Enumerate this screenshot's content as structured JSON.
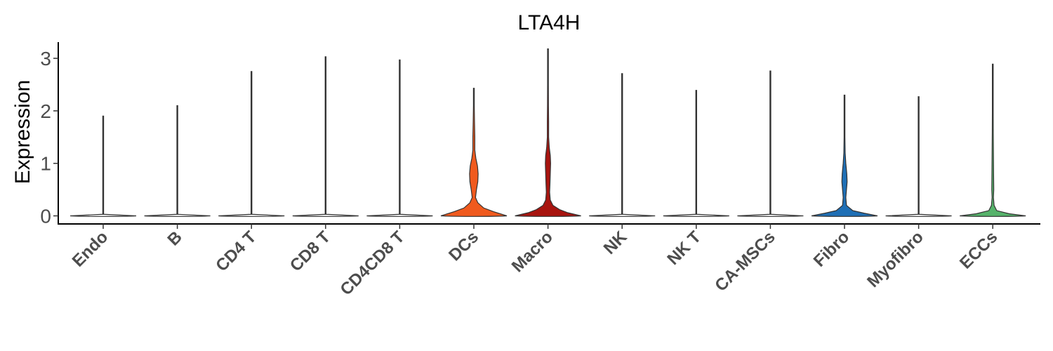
{
  "chart_data": {
    "type": "violin",
    "title": "LTA4H",
    "xlabel": "",
    "ylabel": "Expression",
    "ylim": [
      -0.15,
      3.3
    ],
    "yticks": [
      "0",
      "1",
      "2",
      "3"
    ],
    "grid": false,
    "legend": "none",
    "categories": [
      "Endo",
      "B",
      "CD4 T",
      "CD8 T",
      "CD4CD8 T",
      "DCs",
      "Macro",
      "NK",
      "NK T",
      "CA-MSCs",
      "Fibro",
      "Myofibro",
      "ECCs"
    ],
    "max_values": [
      1.9,
      2.1,
      2.75,
      3.03,
      2.97,
      2.43,
      3.18,
      2.71,
      2.39,
      2.76,
      2.3,
      2.27,
      2.89
    ],
    "colors": [
      "#ffffff",
      "#ffffff",
      "#ffffff",
      "#ffffff",
      "#ffffff",
      "#f05a1e",
      "#a8140f",
      "#ffffff",
      "#ffffff",
      "#ffffff",
      "#1f6fb5",
      "#ffffff",
      "#56b36b"
    ],
    "density_profiles": [
      [
        [
          0,
          1.0
        ],
        [
          0.03,
          0.0
        ],
        [
          1.9,
          0.0
        ]
      ],
      [
        [
          0,
          1.0
        ],
        [
          0.03,
          0.0
        ],
        [
          2.1,
          0.0
        ]
      ],
      [
        [
          0,
          1.0
        ],
        [
          0.03,
          0.0
        ],
        [
          2.75,
          0.0
        ]
      ],
      [
        [
          0,
          1.0
        ],
        [
          0.03,
          0.0
        ],
        [
          3.03,
          0.0
        ]
      ],
      [
        [
          0,
          1.0
        ],
        [
          0.03,
          0.0
        ],
        [
          2.97,
          0.0
        ]
      ],
      [
        [
          0,
          1.0
        ],
        [
          0.08,
          0.6
        ],
        [
          0.15,
          0.3
        ],
        [
          0.25,
          0.12
        ],
        [
          0.35,
          0.05
        ],
        [
          0.5,
          0.08
        ],
        [
          0.65,
          0.12
        ],
        [
          0.8,
          0.13
        ],
        [
          0.95,
          0.11
        ],
        [
          1.1,
          0.06
        ],
        [
          1.25,
          0.03
        ],
        [
          1.5,
          0.03
        ],
        [
          1.8,
          0.02
        ],
        [
          2.1,
          0.01
        ],
        [
          2.43,
          0.0
        ]
      ],
      [
        [
          0,
          1.0
        ],
        [
          0.06,
          0.6
        ],
        [
          0.12,
          0.35
        ],
        [
          0.2,
          0.15
        ],
        [
          0.3,
          0.07
        ],
        [
          0.45,
          0.05
        ],
        [
          0.6,
          0.06
        ],
        [
          0.8,
          0.07
        ],
        [
          1.0,
          0.08
        ],
        [
          1.15,
          0.07
        ],
        [
          1.3,
          0.04
        ],
        [
          1.5,
          0.02
        ],
        [
          1.8,
          0.02
        ],
        [
          2.1,
          0.015
        ],
        [
          2.5,
          0.01
        ],
        [
          3.18,
          0.0
        ]
      ],
      [
        [
          0,
          1.0
        ],
        [
          0.03,
          0.0
        ],
        [
          2.71,
          0.0
        ]
      ],
      [
        [
          0,
          1.0
        ],
        [
          0.03,
          0.0
        ],
        [
          2.39,
          0.0
        ]
      ],
      [
        [
          0,
          1.0
        ],
        [
          0.03,
          0.0
        ],
        [
          2.76,
          0.0
        ]
      ],
      [
        [
          0,
          1.0
        ],
        [
          0.05,
          0.6
        ],
        [
          0.1,
          0.25
        ],
        [
          0.2,
          0.06
        ],
        [
          0.35,
          0.04
        ],
        [
          0.5,
          0.06
        ],
        [
          0.65,
          0.08
        ],
        [
          0.8,
          0.07
        ],
        [
          1.0,
          0.04
        ],
        [
          1.2,
          0.02
        ],
        [
          1.5,
          0.01
        ],
        [
          2.3,
          0.0
        ]
      ],
      [
        [
          0,
          1.0
        ],
        [
          0.03,
          0.0
        ],
        [
          2.27,
          0.0
        ]
      ],
      [
        [
          0,
          1.0
        ],
        [
          0.04,
          0.5
        ],
        [
          0.1,
          0.12
        ],
        [
          0.2,
          0.04
        ],
        [
          0.35,
          0.02
        ],
        [
          0.5,
          0.03
        ],
        [
          0.8,
          0.025
        ],
        [
          1.2,
          0.02
        ],
        [
          1.6,
          0.015
        ],
        [
          2.0,
          0.01
        ],
        [
          2.89,
          0.0
        ]
      ]
    ]
  }
}
